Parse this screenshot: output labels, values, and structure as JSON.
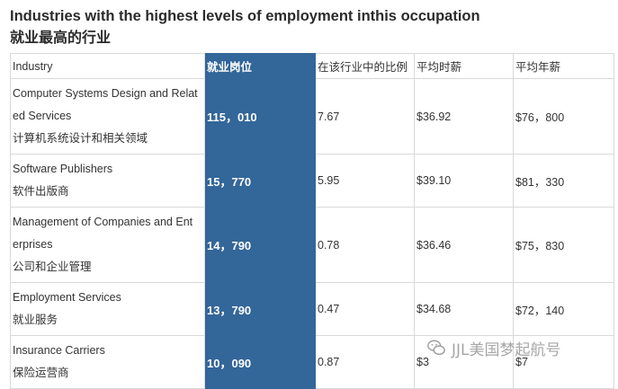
{
  "title": "Industries with the highest levels of employment inthis occupation",
  "subtitle": "就业最高的行业",
  "table": {
    "headers": [
      "Industry",
      "就业岗位",
      "在该行业中的比例",
      "平均时薪",
      "平均年薪"
    ],
    "rows": [
      {
        "industry_en_1": "Computer Systems Design and Relat",
        "industry_en_2": "ed Services",
        "industry_cn": "计算机系统设计和相关领域",
        "jobs": "115，010",
        "share": "7.67",
        "hourly": "$36.92",
        "annual": "$76，800"
      },
      {
        "industry_en_1": "Software Publishers",
        "industry_en_2": "",
        "industry_cn": "软件出版商",
        "jobs": "15，770",
        "share": "5.95",
        "hourly": "$39.10",
        "annual": "$81，330"
      },
      {
        "industry_en_1": "Management of Companies and Ent",
        "industry_en_2": "erprises",
        "industry_cn": "公司和企业管理",
        "jobs": "14，790",
        "share": "0.78",
        "hourly": "$36.46",
        "annual": "$75，830"
      },
      {
        "industry_en_1": "Employment Services",
        "industry_en_2": "",
        "industry_cn": "就业服务",
        "jobs": "13，790",
        "share": "0.47",
        "hourly": "$34.68",
        "annual": "$72，140"
      },
      {
        "industry_en_1": "Insurance Carriers",
        "industry_en_2": "",
        "industry_cn": "保险运营商",
        "jobs": "10，090",
        "share": "0.87",
        "hourly": "$3",
        "annual": "$7"
      }
    ]
  },
  "watermark": {
    "text": "JJL美国梦起航号",
    "icon": "wechat-logo-icon"
  },
  "colors": {
    "highlight": "#336699",
    "border": "#d9d9d9"
  }
}
